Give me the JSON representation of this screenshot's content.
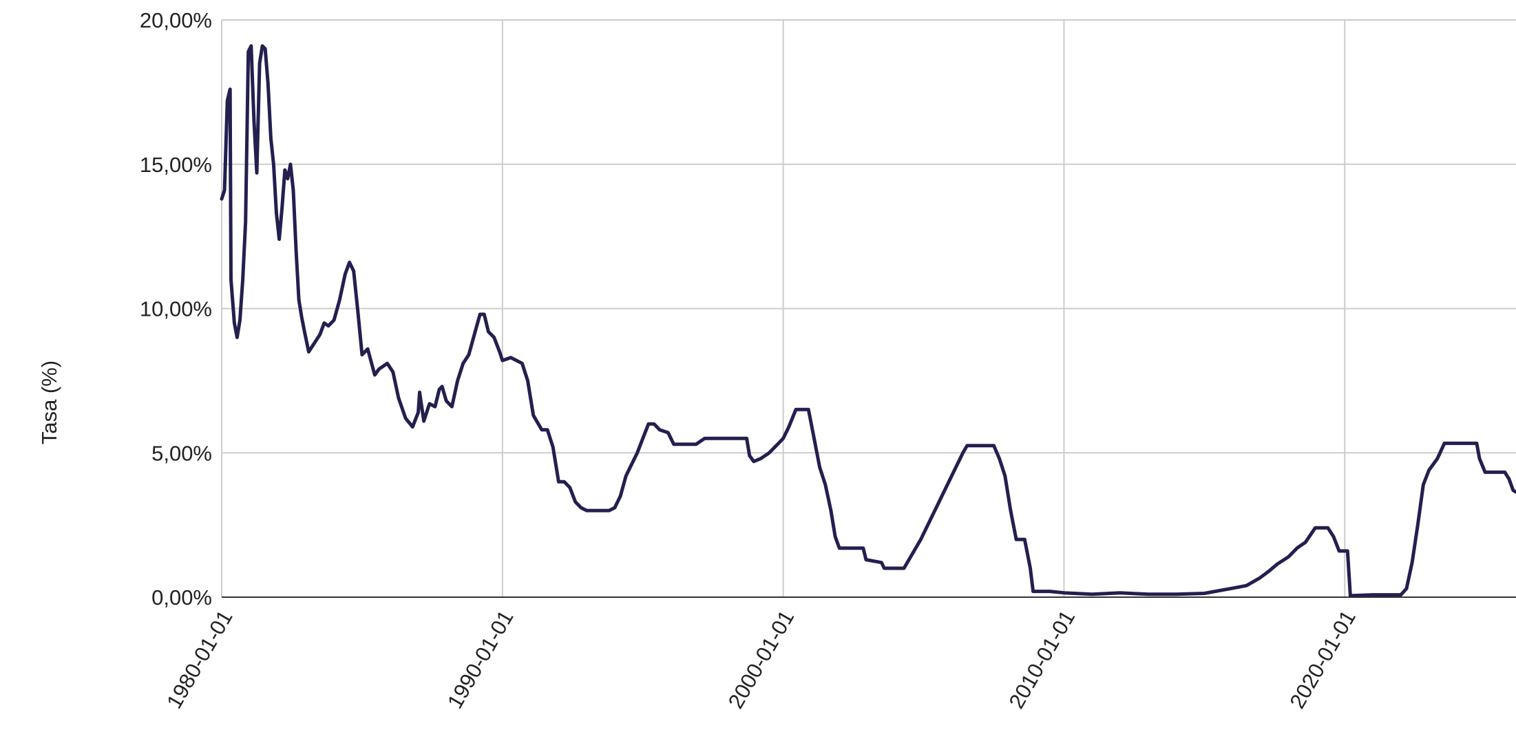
{
  "chart_data": {
    "type": "line",
    "y_label": "Tasa (%)",
    "color": "#231f4f",
    "grid": true,
    "xlim": [
      1980,
      2026.1
    ],
    "xticks": [
      {
        "value": 1980,
        "label": "1980-01-01"
      },
      {
        "value": 1990,
        "label": "1990-01-01"
      },
      {
        "value": 2000,
        "label": "2000-01-01"
      },
      {
        "value": 2010,
        "label": "2010-01-01"
      },
      {
        "value": 2020,
        "label": "2020-01-01"
      }
    ],
    "ylim": [
      0,
      20
    ],
    "yticks": [
      {
        "value": 0,
        "label": "0,00%"
      },
      {
        "value": 5,
        "label": "5,00%"
      },
      {
        "value": 10,
        "label": "10,00%"
      },
      {
        "value": 15,
        "label": "15,00%"
      },
      {
        "value": 20,
        "label": "20,00%"
      }
    ],
    "x": [
      1980.0,
      1980.1,
      1980.2,
      1980.3,
      1980.33,
      1980.45,
      1980.55,
      1980.65,
      1980.75,
      1980.85,
      1980.95,
      1981.05,
      1981.15,
      1981.25,
      1981.35,
      1981.45,
      1981.55,
      1981.65,
      1981.75,
      1981.85,
      1981.95,
      1982.05,
      1982.15,
      1982.25,
      1982.35,
      1982.45,
      1982.55,
      1982.65,
      1982.75,
      1982.85,
      1982.95,
      1983.1,
      1983.3,
      1983.5,
      1983.65,
      1983.8,
      1984.0,
      1984.2,
      1984.4,
      1984.55,
      1984.7,
      1984.85,
      1985.0,
      1985.2,
      1985.45,
      1985.6,
      1985.9,
      1986.1,
      1986.3,
      1986.55,
      1986.8,
      1987.0,
      1987.05,
      1987.2,
      1987.4,
      1987.6,
      1987.75,
      1987.85,
      1988.0,
      1988.2,
      1988.4,
      1988.6,
      1988.8,
      1989.0,
      1989.2,
      1989.35,
      1989.5,
      1989.7,
      1989.9,
      1990.0,
      1990.3,
      1990.5,
      1990.7,
      1990.9,
      1991.1,
      1991.4,
      1991.6,
      1991.8,
      1992.0,
      1992.2,
      1992.4,
      1992.6,
      1992.8,
      1993.0,
      1993.4,
      1993.8,
      1994.0,
      1994.2,
      1994.4,
      1994.6,
      1994.8,
      1995.0,
      1995.2,
      1995.4,
      1995.6,
      1995.9,
      1996.1,
      1996.5,
      1996.9,
      1997.2,
      1997.6,
      1998.0,
      1998.4,
      1998.7,
      1998.8,
      1998.95,
      1999.2,
      1999.5,
      1999.8,
      2000.0,
      2000.2,
      2000.45,
      2000.9,
      2001.1,
      2001.3,
      2001.5,
      2001.7,
      2001.85,
      2002.0,
      2002.5,
      2002.85,
      2002.95,
      2003.5,
      2003.6,
      2004.3,
      2004.6,
      2004.9,
      2005.2,
      2005.5,
      2005.8,
      2006.1,
      2006.4,
      2006.55,
      2007.5,
      2007.7,
      2007.9,
      2008.1,
      2008.3,
      2008.6,
      2008.8,
      2008.9,
      2009.5,
      2010.0,
      2011.0,
      2012.0,
      2013.0,
      2014.0,
      2015.0,
      2015.95,
      2016.5,
      2016.95,
      2017.3,
      2017.6,
      2018.0,
      2018.3,
      2018.6,
      2018.95,
      2019.4,
      2019.6,
      2019.8,
      2020.1,
      2020.2,
      2021.0,
      2022.0,
      2022.2,
      2022.4,
      2022.6,
      2022.8,
      2023.0,
      2023.3,
      2023.55,
      2024.7,
      2024.8,
      2025.0,
      2025.7,
      2025.85,
      2026.0,
      2026.1
    ],
    "values": [
      13.8,
      14.1,
      17.2,
      17.6,
      11.0,
      9.5,
      9.0,
      9.6,
      11.0,
      13.0,
      18.9,
      19.1,
      16.5,
      14.7,
      18.5,
      19.1,
      19.0,
      17.8,
      15.9,
      15.0,
      13.3,
      12.4,
      13.5,
      14.8,
      14.5,
      15.0,
      14.1,
      12.0,
      10.3,
      9.7,
      9.2,
      8.5,
      8.8,
      9.1,
      9.5,
      9.4,
      9.6,
      10.3,
      11.2,
      11.6,
      11.3,
      9.9,
      8.4,
      8.6,
      7.7,
      7.9,
      8.1,
      7.8,
      6.9,
      6.2,
      5.9,
      6.4,
      7.1,
      6.1,
      6.7,
      6.6,
      7.2,
      7.3,
      6.8,
      6.6,
      7.5,
      8.1,
      8.4,
      9.1,
      9.8,
      9.8,
      9.2,
      9.0,
      8.5,
      8.2,
      8.3,
      8.2,
      8.1,
      7.5,
      6.3,
      5.8,
      5.8,
      5.2,
      4.0,
      4.0,
      3.8,
      3.3,
      3.1,
      3.0,
      3.0,
      3.0,
      3.1,
      3.5,
      4.2,
      4.6,
      5.0,
      5.5,
      6.0,
      6.0,
      5.8,
      5.7,
      5.3,
      5.3,
      5.3,
      5.5,
      5.5,
      5.5,
      5.5,
      5.5,
      4.9,
      4.7,
      4.8,
      5.0,
      5.3,
      5.5,
      5.9,
      6.5,
      6.5,
      5.5,
      4.5,
      3.9,
      3.0,
      2.1,
      1.7,
      1.7,
      1.7,
      1.3,
      1.2,
      1.0,
      1.0,
      1.5,
      2.0,
      2.6,
      3.2,
      3.8,
      4.4,
      5.0,
      5.25,
      5.25,
      4.8,
      4.2,
      3.0,
      2.0,
      2.0,
      1.0,
      0.2,
      0.2,
      0.15,
      0.1,
      0.15,
      0.1,
      0.1,
      0.13,
      0.3,
      0.4,
      0.65,
      0.9,
      1.15,
      1.4,
      1.7,
      1.9,
      2.4,
      2.4,
      2.1,
      1.6,
      1.6,
      0.05,
      0.08,
      0.08,
      0.3,
      1.2,
      2.5,
      3.9,
      4.4,
      4.8,
      5.33,
      5.33,
      4.8,
      4.33,
      4.33,
      4.1,
      3.7,
      3.64
    ]
  }
}
